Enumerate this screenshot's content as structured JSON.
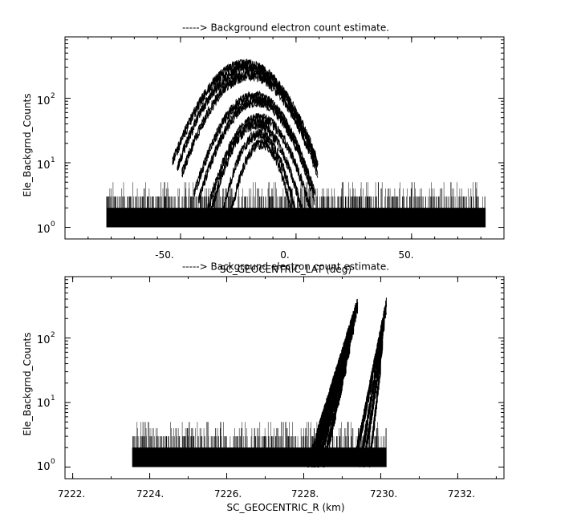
{
  "chart_data": [
    {
      "type": "line",
      "title": "-----> Background electron count estimate.",
      "xlabel": "SC_GEOCENTRIC_LAT (deg)",
      "ylabel": "Ele_Backgrnd_Counts",
      "xlim": [
        -100,
        90
      ],
      "ylim_log10": [
        -0.18,
        2.95
      ],
      "yscale": "log",
      "x_ticks": [
        -50,
        0,
        50
      ],
      "x_tick_labels": [
        "-50.",
        "0.",
        "50."
      ],
      "y_ticks": [
        1,
        10,
        100
      ],
      "y_tick_labels": [
        "10",
        "10",
        "10"
      ],
      "y_tick_exponents": [
        "0",
        "1",
        "2"
      ],
      "background": {
        "x_range": [
          -82,
          82
        ],
        "levels": [
          1,
          2,
          3,
          4,
          5
        ],
        "description": "noise floor"
      },
      "series": [
        {
          "center": -22,
          "peak": 340,
          "width": 30
        },
        {
          "center": -21,
          "peak": 290,
          "width": 29
        },
        {
          "center": -20,
          "peak": 230,
          "width": 28
        },
        {
          "center": -18,
          "peak": 110,
          "width": 25
        },
        {
          "center": -17,
          "peak": 90,
          "width": 24
        },
        {
          "center": -16,
          "peak": 50,
          "width": 22
        },
        {
          "center": -17,
          "peak": 40,
          "width": 20
        },
        {
          "center": -16,
          "peak": 28,
          "width": 17
        },
        {
          "center": -15,
          "peak": 20,
          "width": 15
        }
      ]
    },
    {
      "type": "line",
      "title": "-----> Background electron count estimate.",
      "xlabel": "SC_GEOCENTRIC_R (km)",
      "ylabel": "Ele_Backgrnd_Counts",
      "xlim": [
        7221.8,
        7233.2
      ],
      "ylim_log10": [
        -0.18,
        2.95
      ],
      "yscale": "log",
      "x_ticks": [
        7222,
        7224,
        7226,
        7228,
        7230,
        7232
      ],
      "x_tick_labels": [
        "7222.",
        "7224.",
        "7226.",
        "7228.",
        "7230.",
        "7232."
      ],
      "y_ticks": [
        1,
        10,
        100
      ],
      "y_tick_labels": [
        "10",
        "10",
        "10"
      ],
      "y_tick_exponents": [
        "0",
        "1",
        "2"
      ],
      "background": {
        "x_range": [
          7223.55,
          7230.15
        ],
        "levels": [
          1,
          2,
          3,
          4,
          5
        ],
        "description": "noise floor"
      },
      "series": [
        {
          "x_start": 7228.1,
          "x_end": 7229.4,
          "peak": 340
        },
        {
          "x_start": 7228.2,
          "x_end": 7229.35,
          "peak": 250
        },
        {
          "x_start": 7228.25,
          "x_end": 7229.3,
          "peak": 160
        },
        {
          "x_start": 7228.35,
          "x_end": 7229.2,
          "peak": 80
        },
        {
          "x_start": 7228.5,
          "x_end": 7229.1,
          "peak": 40
        },
        {
          "x_start": 7229.3,
          "x_end": 7230.15,
          "peak": 340
        },
        {
          "x_start": 7229.45,
          "x_end": 7230.1,
          "peak": 200
        },
        {
          "x_start": 7229.55,
          "x_end": 7230.05,
          "peak": 90
        },
        {
          "x_start": 7229.7,
          "x_end": 7230.0,
          "peak": 40
        }
      ]
    }
  ]
}
